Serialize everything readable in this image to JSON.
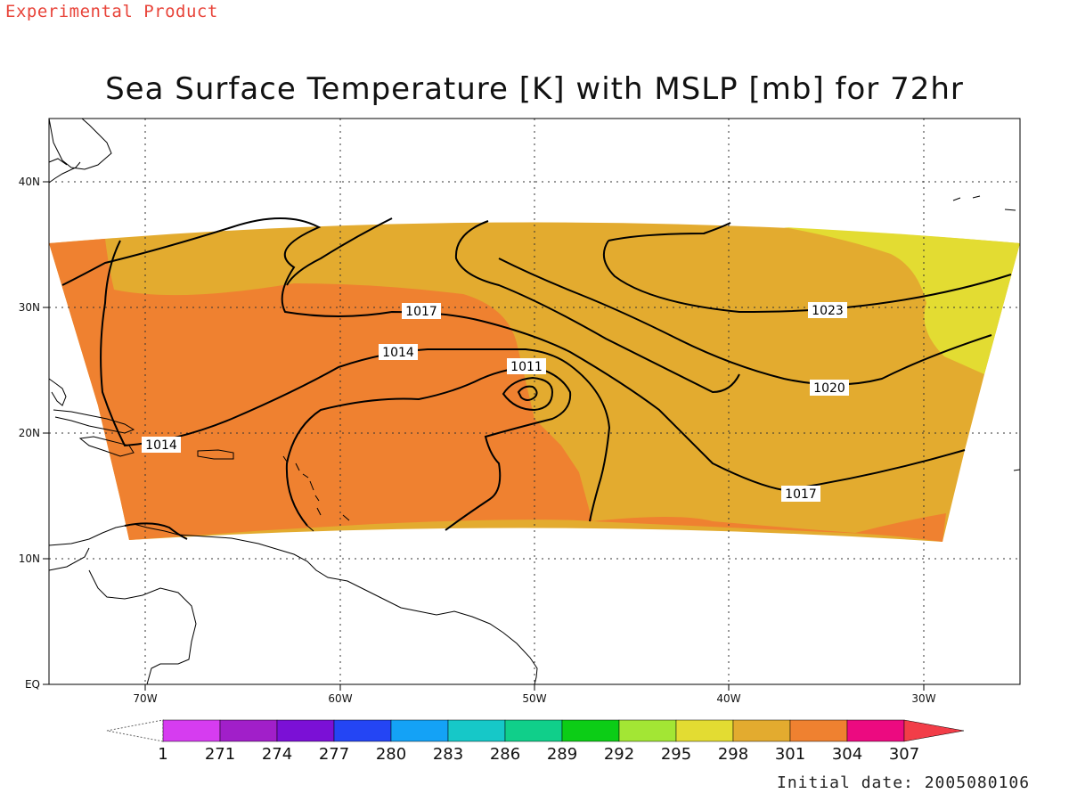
{
  "header": {
    "product_tag": "Experimental Product",
    "title": "Sea Surface Temperature [K] with MSLP [mb] for 72hr"
  },
  "footer": {
    "initial_date": "Initial date: 2005080106"
  },
  "chart_data": {
    "type": "heatmap",
    "title": "Sea Surface Temperature [K] with MSLP [mb] for 72hr",
    "x_axis": {
      "ticks": [
        "70W",
        "60W",
        "50W",
        "40W",
        "30W"
      ],
      "range": [
        "75W",
        "25W"
      ]
    },
    "y_axis": {
      "ticks": [
        "EQ",
        "10N",
        "20N",
        "30N",
        "40N"
      ],
      "range": [
        "0N",
        "45N"
      ]
    },
    "grid": true,
    "colorbar": {
      "labels": [
        "1",
        "271",
        "274",
        "277",
        "280",
        "283",
        "286",
        "289",
        "292",
        "295",
        "298",
        "301",
        "304",
        "307"
      ],
      "colors": [
        "#d63cf0",
        "#a11fc9",
        "#7b10d6",
        "#2445f4",
        "#14a2f6",
        "#16c8c8",
        "#10cf8a",
        "#0ccd16",
        "#a3e634",
        "#e3dc32",
        "#e3ab2f",
        "#ef8130",
        "#ec0a80",
        "#f23d48"
      ]
    },
    "sst_fill_colors": {
      "295-298": "#e3dc32",
      "298-301": "#e3ab2f",
      "301-304": "#ef8130"
    },
    "mslp_contours": [
      {
        "value": 1011,
        "label": "1011"
      },
      {
        "value": 1014,
        "label": "1014"
      },
      {
        "value": 1017,
        "label": "1017"
      },
      {
        "value": 1020,
        "label": "1020"
      },
      {
        "value": 1023,
        "label": "1023"
      }
    ],
    "contour_labels": [
      {
        "text": "1017",
        "lon": -55.0,
        "lat": 29.8
      },
      {
        "text": "1014",
        "lon": -54.9,
        "lat": 26.6
      },
      {
        "text": "1011",
        "lon": -50.6,
        "lat": 25.0
      },
      {
        "text": "1014",
        "lon": -69.9,
        "lat": 19.5
      },
      {
        "text": "1023",
        "lon": -35.3,
        "lat": 30.0
      },
      {
        "text": "1020",
        "lon": -35.0,
        "lat": 24.2
      },
      {
        "text": "1017",
        "lon": -36.5,
        "lat": 15.0
      }
    ],
    "low_center": {
      "lon": -50.3,
      "lat": 23.0,
      "pressure_mb": "<1011"
    }
  }
}
